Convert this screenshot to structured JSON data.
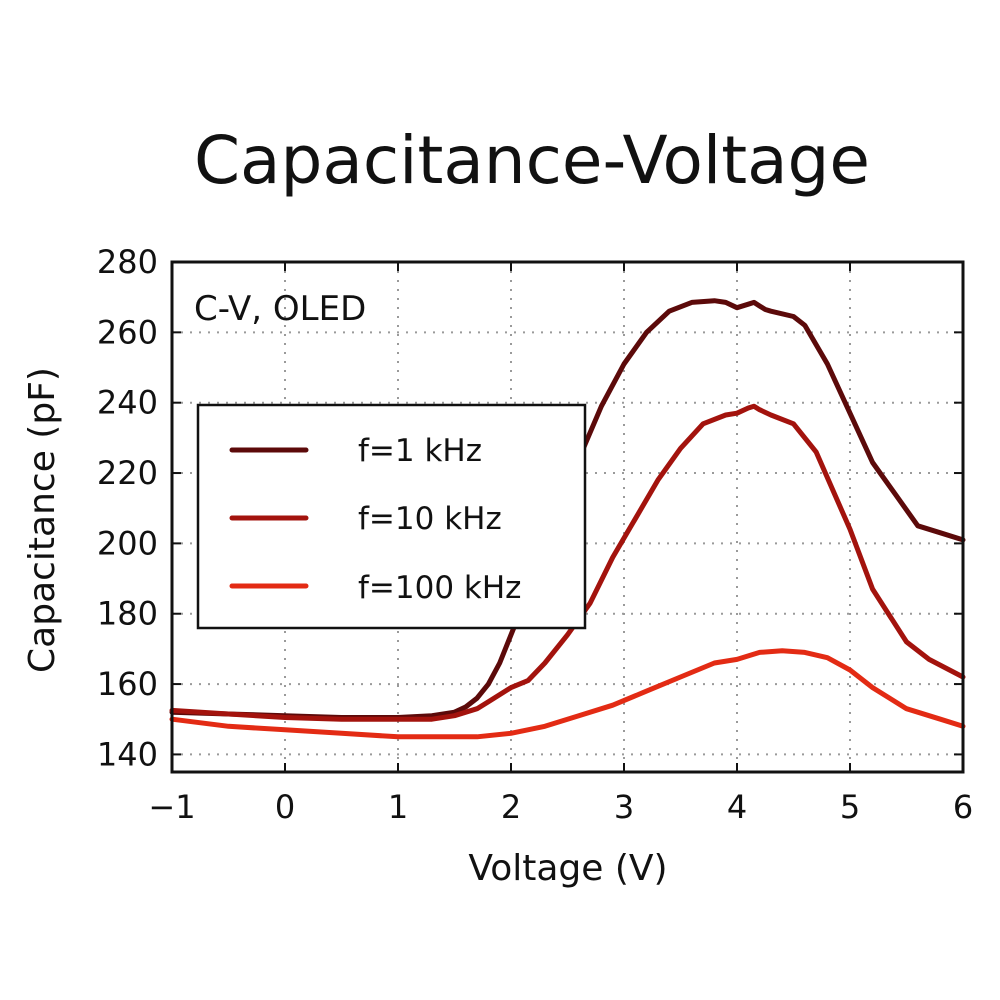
{
  "chart_data": {
    "type": "line",
    "title": "Capacitance-Voltage",
    "xlabel": "Voltage (V)",
    "ylabel": "Capacitance (pF)",
    "xlim": [
      -1,
      6
    ],
    "ylim": [
      135,
      280
    ],
    "xticks": [
      -1,
      0,
      1,
      2,
      3,
      4,
      5,
      6
    ],
    "xtick_labels": [
      "−1",
      "0",
      "1",
      "2",
      "3",
      "4",
      "5",
      "6"
    ],
    "yticks": [
      140,
      160,
      180,
      200,
      220,
      240,
      260,
      280
    ],
    "ytick_labels": [
      "140",
      "160",
      "180",
      "200",
      "220",
      "240",
      "260",
      "280"
    ],
    "grid": true,
    "legend_position": "center-left",
    "annotation": "C-V, OLED",
    "series": [
      {
        "name": "f=1 kHz",
        "color": "#5c0a0a",
        "x": [
          -1,
          -0.5,
          0,
          0.5,
          1,
          1.3,
          1.5,
          1.6,
          1.7,
          1.8,
          1.9,
          2,
          2.2,
          2.4,
          2.6,
          2.8,
          3,
          3.2,
          3.4,
          3.6,
          3.8,
          3.9,
          4,
          4.1,
          4.15,
          4.2,
          4.25,
          4.3,
          4.5,
          4.6,
          4.8,
          5,
          5.2,
          5.4,
          5.6,
          5.8,
          6
        ],
        "y": [
          152,
          151.5,
          151,
          150.5,
          150.5,
          151,
          152,
          153.5,
          156,
          160,
          166,
          174,
          190,
          208,
          224,
          239,
          251,
          260,
          266,
          268.5,
          269,
          268.5,
          267,
          268,
          268.5,
          267.5,
          266.5,
          266,
          264.5,
          262,
          251,
          237,
          223,
          214,
          205,
          203,
          201
        ]
      },
      {
        "name": "f=10 kHz",
        "color": "#a3130d",
        "x": [
          -1,
          -0.5,
          0,
          0.5,
          1,
          1.3,
          1.5,
          1.7,
          1.8,
          2,
          2.15,
          2.3,
          2.5,
          2.7,
          2.9,
          3.1,
          3.3,
          3.5,
          3.7,
          3.9,
          4,
          4.1,
          4.15,
          4.2,
          4.3,
          4.5,
          4.7,
          5,
          5.2,
          5.5,
          5.7,
          6
        ],
        "y": [
          152.5,
          151.5,
          150.5,
          150,
          150,
          150,
          151,
          153,
          155,
          159,
          161,
          166,
          174,
          183,
          196,
          207,
          218,
          227,
          234,
          236.5,
          237,
          238.5,
          239,
          238,
          236.5,
          234,
          226,
          204,
          187,
          172,
          167,
          162
        ]
      },
      {
        "name": "f=100 kHz",
        "color": "#e32b14",
        "x": [
          -1,
          -0.5,
          0,
          0.5,
          1,
          1.3,
          1.7,
          2,
          2.3,
          2.6,
          2.9,
          3.2,
          3.5,
          3.8,
          4,
          4.2,
          4.4,
          4.6,
          4.8,
          5,
          5.2,
          5.5,
          5.8,
          6
        ],
        "y": [
          150,
          148,
          147,
          146,
          145,
          145,
          145,
          146,
          148,
          151,
          154,
          158,
          162,
          166,
          167,
          169,
          169.5,
          169,
          167.5,
          164,
          159,
          153,
          150,
          148
        ]
      }
    ]
  }
}
